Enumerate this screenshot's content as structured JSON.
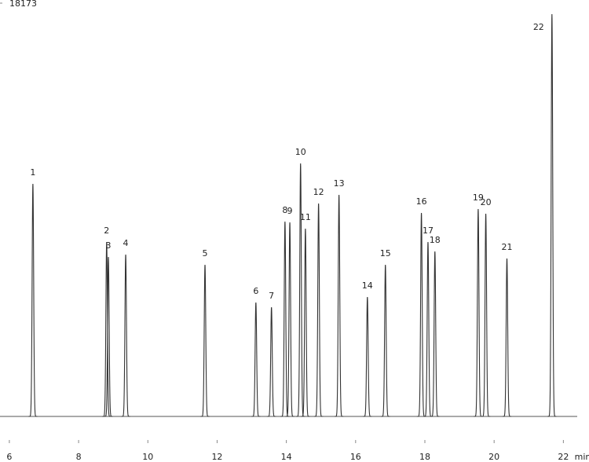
{
  "chart_data": {
    "type": "chromatogram",
    "x_label": "min",
    "categories": [
      "1",
      "2",
      "3",
      "4",
      "5",
      "6",
      "7",
      "8",
      "9",
      "10",
      "11",
      "12",
      "13",
      "14",
      "15",
      "16",
      "17",
      "18",
      "19",
      "20",
      "21",
      "22"
    ],
    "x": [
      6.68,
      8.81,
      8.86,
      9.36,
      11.65,
      13.12,
      13.57,
      13.96,
      14.1,
      14.41,
      14.55,
      14.93,
      15.52,
      16.34,
      16.86,
      17.9,
      18.09,
      18.29,
      19.54,
      19.76,
      20.37,
      21.67
    ],
    "values": [
      10227,
      7670,
      7014,
      7117,
      6668,
      5010,
      4802,
      8568,
      8534,
      11125,
      8257,
      9363,
      9743,
      5252,
      6668,
      8948,
      7670,
      7256,
      9121,
      8914,
      6945,
      17690
    ],
    "color": "#333333",
    "xlim": [
      5.73,
      22.4
    ],
    "xticks": [
      6,
      8,
      10,
      12,
      14,
      16,
      18,
      20,
      22
    ],
    "ylim": [
      0,
      18173
    ],
    "yticks": [
      18173
    ]
  }
}
